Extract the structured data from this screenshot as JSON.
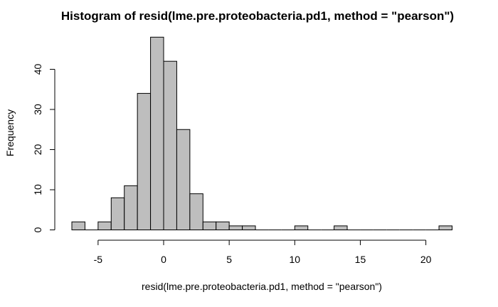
{
  "chart_data": {
    "type": "bar",
    "title": "Histogram of resid(lme.pre.proteobacteria.pd1, method = \"pearson\")",
    "xlabel": "resid(lme.pre.proteobacteria.pd1, method = \"pearson\")",
    "ylabel": "Frequency",
    "bin_width": 1,
    "bins": [
      {
        "start": -7,
        "end": -6,
        "count": 2
      },
      {
        "start": -6,
        "end": -5,
        "count": 0
      },
      {
        "start": -5,
        "end": -4,
        "count": 2
      },
      {
        "start": -4,
        "end": -3,
        "count": 8
      },
      {
        "start": -3,
        "end": -2,
        "count": 11
      },
      {
        "start": -2,
        "end": -1,
        "count": 34
      },
      {
        "start": -1,
        "end": 0,
        "count": 48
      },
      {
        "start": 0,
        "end": 1,
        "count": 42
      },
      {
        "start": 1,
        "end": 2,
        "count": 25
      },
      {
        "start": 2,
        "end": 3,
        "count": 9
      },
      {
        "start": 3,
        "end": 4,
        "count": 2
      },
      {
        "start": 4,
        "end": 5,
        "count": 2
      },
      {
        "start": 5,
        "end": 6,
        "count": 1
      },
      {
        "start": 6,
        "end": 7,
        "count": 1
      },
      {
        "start": 7,
        "end": 8,
        "count": 0
      },
      {
        "start": 8,
        "end": 9,
        "count": 0
      },
      {
        "start": 9,
        "end": 10,
        "count": 0
      },
      {
        "start": 10,
        "end": 11,
        "count": 1
      },
      {
        "start": 11,
        "end": 12,
        "count": 0
      },
      {
        "start": 12,
        "end": 13,
        "count": 0
      },
      {
        "start": 13,
        "end": 14,
        "count": 1
      },
      {
        "start": 14,
        "end": 15,
        "count": 0
      },
      {
        "start": 15,
        "end": 16,
        "count": 0
      },
      {
        "start": 16,
        "end": 17,
        "count": 0
      },
      {
        "start": 17,
        "end": 18,
        "count": 0
      },
      {
        "start": 18,
        "end": 19,
        "count": 0
      },
      {
        "start": 19,
        "end": 20,
        "count": 0
      },
      {
        "start": 20,
        "end": 21,
        "count": 0
      },
      {
        "start": 21,
        "end": 22,
        "count": 1
      }
    ],
    "xlim": [
      -7,
      22
    ],
    "ylim": [
      0,
      48
    ],
    "x_ticks": [
      -5,
      0,
      5,
      10,
      15,
      20
    ],
    "y_ticks": [
      0,
      10,
      20,
      30,
      40
    ],
    "grid": false,
    "bar_color": "#bebebe",
    "edge_color": "#000000"
  }
}
